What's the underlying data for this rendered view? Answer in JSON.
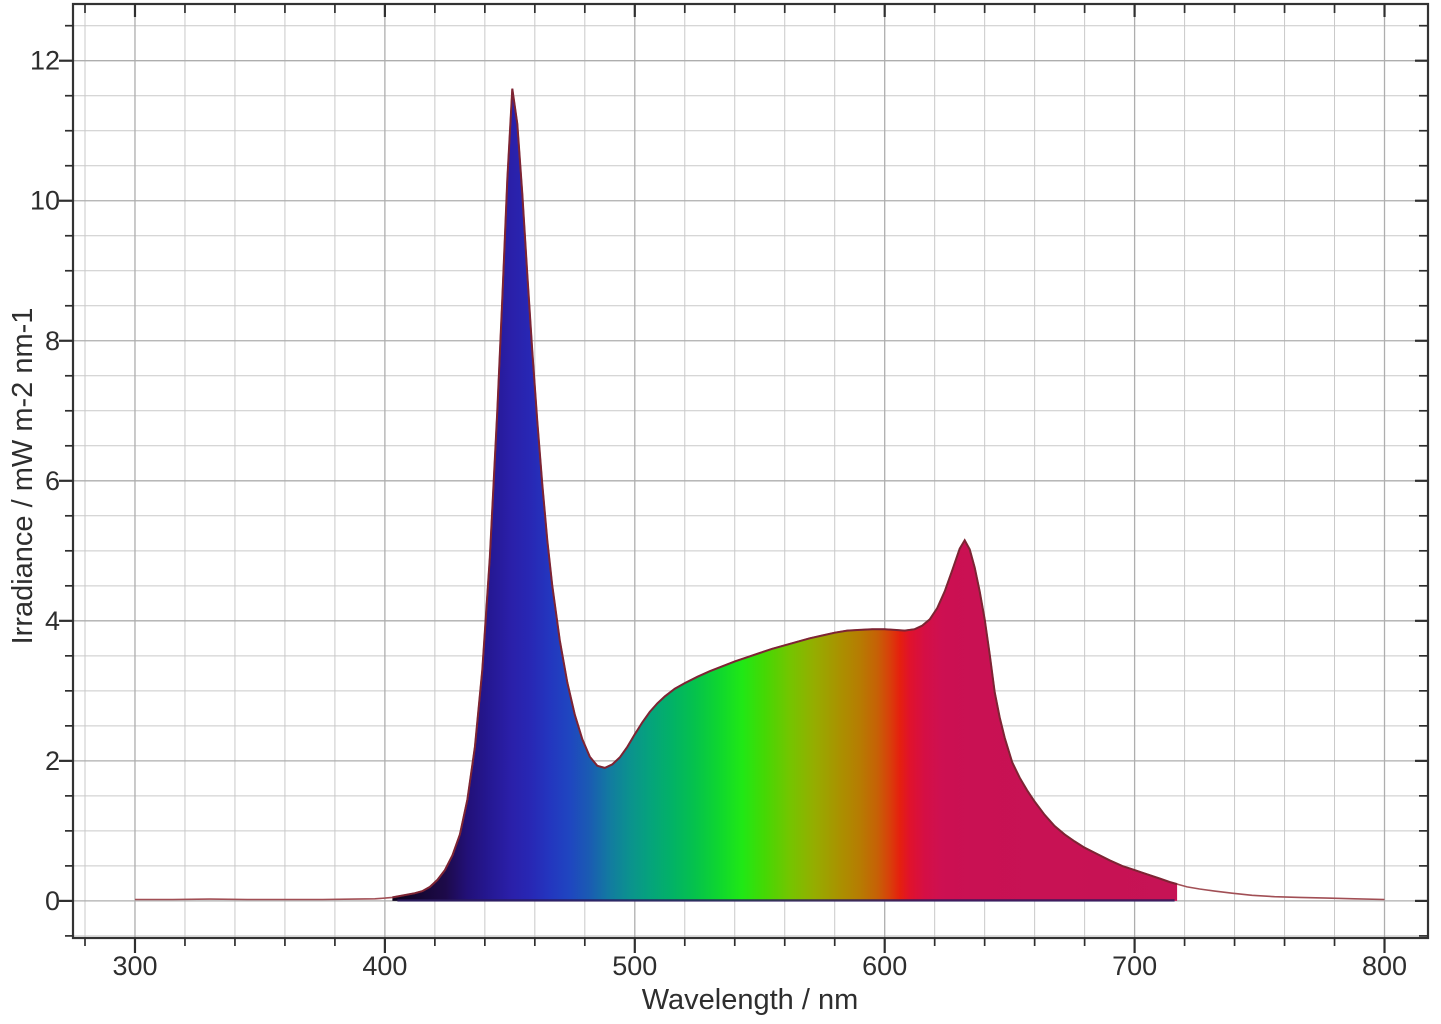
{
  "chart_data": {
    "type": "area",
    "title": "",
    "xlabel": "Wavelength / nm",
    "ylabel": "Irradiance / mW m-2 nm-1",
    "xlim": [
      275.2,
      817.4
    ],
    "ylim": [
      -0.53,
      12.81
    ],
    "x_major_ticks": [
      300,
      400,
      500,
      600,
      700,
      800
    ],
    "x_minor_step": 20,
    "y_major_ticks": [
      0,
      2,
      4,
      6,
      8,
      10,
      12
    ],
    "y_minor_step": 0.5,
    "grid": "major and minor, on",
    "legend_position": "none",
    "peaks": [
      {
        "wavelength_nm": 451,
        "irradiance": 11.6
      },
      {
        "wavelength_nm": 632,
        "irradiance": 5.15
      }
    ],
    "dip": {
      "wavelength_nm": 487,
      "irradiance": 1.9
    },
    "fill_range_nm": [
      403,
      717
    ],
    "points": [
      [
        300,
        0.02
      ],
      [
        315,
        0.02
      ],
      [
        330,
        0.025
      ],
      [
        345,
        0.02
      ],
      [
        360,
        0.02
      ],
      [
        375,
        0.02
      ],
      [
        388,
        0.025
      ],
      [
        396,
        0.03
      ],
      [
        400,
        0.04
      ],
      [
        403,
        0.05
      ],
      [
        406,
        0.07
      ],
      [
        409,
        0.09
      ],
      [
        412,
        0.11
      ],
      [
        415,
        0.14
      ],
      [
        418,
        0.2
      ],
      [
        421,
        0.3
      ],
      [
        424,
        0.44
      ],
      [
        427,
        0.65
      ],
      [
        430,
        0.95
      ],
      [
        433,
        1.45
      ],
      [
        436,
        2.2
      ],
      [
        439,
        3.3
      ],
      [
        442,
        4.9
      ],
      [
        445,
        7.0
      ],
      [
        447,
        8.6
      ],
      [
        449,
        10.3
      ],
      [
        451,
        11.6
      ],
      [
        453,
        11.1
      ],
      [
        455,
        10.1
      ],
      [
        457,
        8.95
      ],
      [
        459,
        7.85
      ],
      [
        461,
        6.85
      ],
      [
        463,
        5.95
      ],
      [
        465,
        5.15
      ],
      [
        467,
        4.5
      ],
      [
        470,
        3.72
      ],
      [
        473,
        3.12
      ],
      [
        476,
        2.66
      ],
      [
        479,
        2.31
      ],
      [
        482,
        2.06
      ],
      [
        485,
        1.93
      ],
      [
        488,
        1.9
      ],
      [
        491,
        1.95
      ],
      [
        494,
        2.05
      ],
      [
        497,
        2.2
      ],
      [
        500,
        2.38
      ],
      [
        503,
        2.55
      ],
      [
        506,
        2.7
      ],
      [
        509,
        2.82
      ],
      [
        512,
        2.92
      ],
      [
        516,
        3.03
      ],
      [
        520,
        3.11
      ],
      [
        525,
        3.2
      ],
      [
        530,
        3.28
      ],
      [
        535,
        3.35
      ],
      [
        540,
        3.42
      ],
      [
        545,
        3.48
      ],
      [
        550,
        3.54
      ],
      [
        555,
        3.6
      ],
      [
        560,
        3.65
      ],
      [
        565,
        3.7
      ],
      [
        570,
        3.75
      ],
      [
        575,
        3.79
      ],
      [
        580,
        3.83
      ],
      [
        585,
        3.86
      ],
      [
        590,
        3.87
      ],
      [
        595,
        3.88
      ],
      [
        600,
        3.88
      ],
      [
        604,
        3.87
      ],
      [
        608,
        3.86
      ],
      [
        612,
        3.88
      ],
      [
        615,
        3.93
      ],
      [
        618,
        4.02
      ],
      [
        621,
        4.18
      ],
      [
        624,
        4.42
      ],
      [
        627,
        4.72
      ],
      [
        630,
        5.03
      ],
      [
        632,
        5.15
      ],
      [
        634,
        5.02
      ],
      [
        636,
        4.76
      ],
      [
        638,
        4.42
      ],
      [
        640,
        4.02
      ],
      [
        642,
        3.52
      ],
      [
        644,
        2.98
      ],
      [
        646,
        2.62
      ],
      [
        648,
        2.33
      ],
      [
        651,
        1.98
      ],
      [
        654,
        1.76
      ],
      [
        657,
        1.58
      ],
      [
        660,
        1.42
      ],
      [
        664,
        1.23
      ],
      [
        668,
        1.07
      ],
      [
        672,
        0.95
      ],
      [
        676,
        0.85
      ],
      [
        680,
        0.76
      ],
      [
        685,
        0.67
      ],
      [
        690,
        0.58
      ],
      [
        695,
        0.5
      ],
      [
        700,
        0.44
      ],
      [
        705,
        0.38
      ],
      [
        710,
        0.32
      ],
      [
        714,
        0.27
      ],
      [
        717,
        0.24
      ],
      [
        721,
        0.2
      ],
      [
        726,
        0.17
      ],
      [
        732,
        0.14
      ],
      [
        739,
        0.11
      ],
      [
        747,
        0.08
      ],
      [
        756,
        0.06
      ],
      [
        766,
        0.05
      ],
      [
        777,
        0.04
      ],
      [
        788,
        0.03
      ],
      [
        800,
        0.02
      ]
    ],
    "gradient_stops": [
      [
        403,
        "#0c041c"
      ],
      [
        414,
        "#150734"
      ],
      [
        424,
        "#1d0a49"
      ],
      [
        433,
        "#221078"
      ],
      [
        442,
        "#251893"
      ],
      [
        450,
        "#2a1fa8"
      ],
      [
        458,
        "#2827b4"
      ],
      [
        466,
        "#2336bf"
      ],
      [
        474,
        "#1f46c0"
      ],
      [
        482,
        "#1a5cb2"
      ],
      [
        490,
        "#127ba0"
      ],
      [
        498,
        "#0b928e"
      ],
      [
        506,
        "#05a37c"
      ],
      [
        515,
        "#02b266"
      ],
      [
        524,
        "#05c24c"
      ],
      [
        534,
        "#0fd72e"
      ],
      [
        543,
        "#20e815"
      ],
      [
        552,
        "#45d804"
      ],
      [
        562,
        "#74c500"
      ],
      [
        572,
        "#95ad00"
      ],
      [
        582,
        "#aa9100"
      ],
      [
        590,
        "#b67c02"
      ],
      [
        597,
        "#c66106"
      ],
      [
        602,
        "#d8400a"
      ],
      [
        606,
        "#e5200e"
      ],
      [
        610,
        "#e0122c"
      ],
      [
        616,
        "#d50f45"
      ],
      [
        623,
        "#cd1052"
      ],
      [
        635,
        "#c91153"
      ],
      [
        717,
        "#c61355"
      ]
    ],
    "colors": {
      "background": "#ffffff",
      "frame": "#333333",
      "grid_minor": "#c9c9c9",
      "grid_major": "#aeaeae",
      "tick": "#2f2f2f",
      "text": "#2e2e2e",
      "curve_line": "#a14f55",
      "curve_line_over_fill": "#7d2433",
      "baseline_under_fill": "#2a1b5e"
    }
  }
}
